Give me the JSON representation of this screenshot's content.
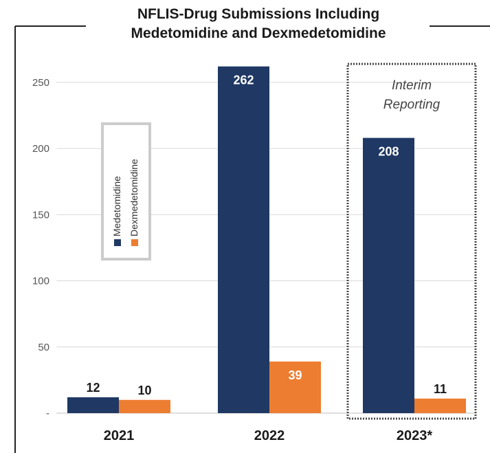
{
  "colors": {
    "medetomidine": "#1f3864",
    "dexmedetomidine": "#ed7d31"
  },
  "chart_data": {
    "type": "bar",
    "title": [
      "NFLIS-Drug Submissions Including",
      "Medetomidine and Dexmedetomidine"
    ],
    "categories": [
      "2021",
      "2022",
      "2023*"
    ],
    "series": [
      {
        "name": "Medetomidine",
        "values": [
          12,
          262,
          208
        ]
      },
      {
        "name": "Dexmedetomidine",
        "values": [
          10,
          39,
          11
        ]
      }
    ],
    "y_ticks": [
      "-",
      "50",
      "100",
      "150",
      "200",
      "250"
    ],
    "ylim": [
      0,
      262
    ],
    "grid": true,
    "legend": "left",
    "annotation": [
      "Interim",
      "Reporting"
    ],
    "annotation_category": "2023*"
  }
}
